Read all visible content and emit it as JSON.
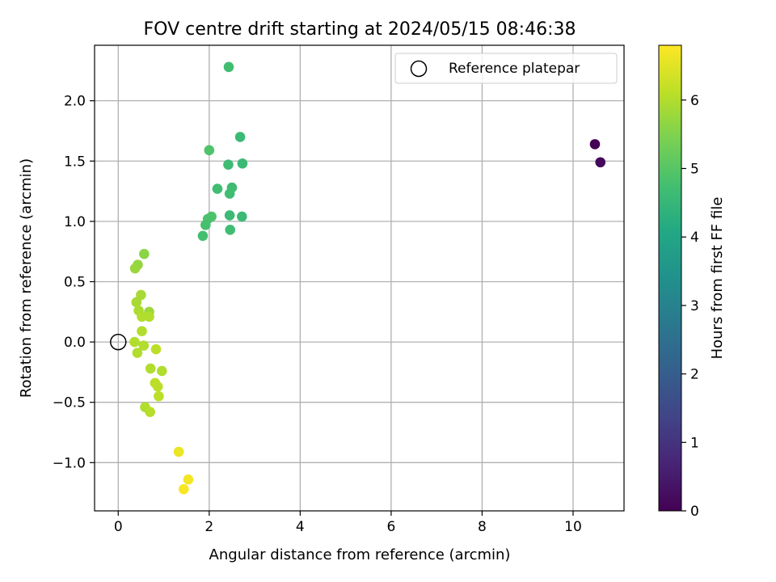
{
  "chart_data": {
    "type": "scatter",
    "title": "FOV centre drift starting at 2024/05/15 08:46:38",
    "xlabel": "Angular distance from reference (arcmin)",
    "ylabel": "Rotation from reference (arcmin)",
    "xlim": [
      -0.52,
      11.12
    ],
    "ylim": [
      -1.4,
      2.46
    ],
    "xticks": [
      0,
      2,
      4,
      6,
      8,
      10
    ],
    "xtick_labels": [
      "0",
      "2",
      "4",
      "6",
      "8",
      "10"
    ],
    "yticks": [
      -1.0,
      -0.5,
      0.0,
      0.5,
      1.0,
      1.5,
      2.0
    ],
    "ytick_labels": [
      "−1.0",
      "−0.5",
      "0.0",
      "0.5",
      "1.0",
      "1.5",
      "2.0"
    ],
    "grid": true,
    "legend": {
      "position": "top-right",
      "entries": [
        "Reference platepar"
      ]
    },
    "reference_point": {
      "x": 0,
      "y": 0,
      "label": "Reference platepar"
    },
    "colorbar": {
      "label": "Hours from first FF file",
      "range": [
        0,
        6.8
      ],
      "colormap": "viridis",
      "ticks": [
        0,
        1,
        2,
        3,
        4,
        5,
        6
      ],
      "tick_labels": [
        "0",
        "1",
        "2",
        "3",
        "4",
        "5",
        "6"
      ]
    },
    "points": [
      {
        "x": 10.48,
        "y": 1.64,
        "hours": 0.0
      },
      {
        "x": 10.6,
        "y": 1.49,
        "hours": 0.15
      },
      {
        "x": 2.43,
        "y": 2.28,
        "hours": 4.7
      },
      {
        "x": 2.68,
        "y": 1.7,
        "hours": 4.6
      },
      {
        "x": 2.0,
        "y": 1.59,
        "hours": 4.9
      },
      {
        "x": 2.42,
        "y": 1.47,
        "hours": 4.65
      },
      {
        "x": 2.73,
        "y": 1.48,
        "hours": 4.6
      },
      {
        "x": 2.18,
        "y": 1.27,
        "hours": 4.7
      },
      {
        "x": 2.5,
        "y": 1.28,
        "hours": 4.65
      },
      {
        "x": 2.45,
        "y": 1.23,
        "hours": 4.7
      },
      {
        "x": 2.45,
        "y": 1.05,
        "hours": 4.6
      },
      {
        "x": 2.72,
        "y": 1.04,
        "hours": 4.6
      },
      {
        "x": 2.05,
        "y": 1.04,
        "hours": 4.9
      },
      {
        "x": 1.97,
        "y": 1.02,
        "hours": 4.85
      },
      {
        "x": 1.92,
        "y": 0.97,
        "hours": 4.8
      },
      {
        "x": 2.46,
        "y": 0.93,
        "hours": 4.7
      },
      {
        "x": 1.86,
        "y": 0.88,
        "hours": 4.75
      },
      {
        "x": 0.57,
        "y": 0.73,
        "hours": 5.6
      },
      {
        "x": 0.43,
        "y": 0.64,
        "hours": 5.7
      },
      {
        "x": 0.37,
        "y": 0.61,
        "hours": 5.75
      },
      {
        "x": 0.5,
        "y": 0.39,
        "hours": 5.9
      },
      {
        "x": 0.4,
        "y": 0.33,
        "hours": 5.9
      },
      {
        "x": 0.45,
        "y": 0.26,
        "hours": 5.95
      },
      {
        "x": 0.68,
        "y": 0.25,
        "hours": 5.8
      },
      {
        "x": 0.52,
        "y": 0.21,
        "hours": 6.0
      },
      {
        "x": 0.68,
        "y": 0.21,
        "hours": 6.0
      },
      {
        "x": 0.52,
        "y": 0.09,
        "hours": 6.0
      },
      {
        "x": 0.36,
        "y": 0.0,
        "hours": 6.0
      },
      {
        "x": 0.56,
        "y": -0.03,
        "hours": 6.0
      },
      {
        "x": 0.42,
        "y": -0.09,
        "hours": 6.0
      },
      {
        "x": 0.83,
        "y": -0.06,
        "hours": 6.1
      },
      {
        "x": 0.71,
        "y": -0.22,
        "hours": 6.0
      },
      {
        "x": 0.96,
        "y": -0.24,
        "hours": 6.0
      },
      {
        "x": 0.81,
        "y": -0.34,
        "hours": 6.1
      },
      {
        "x": 0.87,
        "y": -0.37,
        "hours": 6.1
      },
      {
        "x": 0.89,
        "y": -0.45,
        "hours": 6.1
      },
      {
        "x": 0.59,
        "y": -0.54,
        "hours": 6.0
      },
      {
        "x": 0.7,
        "y": -0.58,
        "hours": 6.05
      },
      {
        "x": 1.33,
        "y": -0.91,
        "hours": 6.6
      },
      {
        "x": 1.54,
        "y": -1.14,
        "hours": 6.7
      },
      {
        "x": 1.44,
        "y": -1.22,
        "hours": 6.75
      }
    ]
  }
}
